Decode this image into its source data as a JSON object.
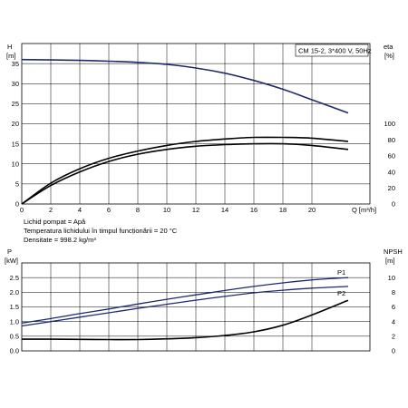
{
  "chart_data": [
    {
      "type": "line",
      "title": "CM 15-2, 3*400 V, 50Hz",
      "ylabel": "H",
      "yunit": "[m]",
      "ylabel_right": "eta",
      "yunit_right": "[%]",
      "xlabel": "Q [m³/h]",
      "xlim": [
        0,
        24
      ],
      "ylim": [
        0,
        40
      ],
      "ylim_right": [
        0,
        200
      ],
      "x_ticks": [
        0,
        2,
        4,
        6,
        8,
        10,
        12,
        14,
        16,
        18,
        20
      ],
      "y_ticks": [
        0,
        5,
        10,
        15,
        20,
        25,
        30,
        35
      ],
      "y_ticks_right": [
        0,
        20,
        40,
        60,
        80,
        100
      ],
      "grid": true,
      "series": [
        {
          "axis": "left",
          "color": "#1c2b6e",
          "x": [
            0,
            2,
            4,
            6,
            8,
            10,
            12,
            14,
            16,
            18,
            20,
            22.5
          ],
          "y": [
            36.0,
            35.9,
            35.8,
            35.6,
            35.3,
            34.8,
            33.9,
            32.6,
            30.8,
            28.6,
            26.0,
            22.7
          ]
        },
        {
          "axis": "right",
          "color": "#000000",
          "x": [
            0,
            2,
            4,
            6,
            8,
            10,
            12,
            14,
            16,
            18,
            20,
            22.5
          ],
          "y": [
            0,
            23,
            40,
            53,
            62,
            68,
            72,
            74,
            75,
            75,
            73,
            68
          ]
        },
        {
          "axis": "right",
          "color": "#000000",
          "x": [
            0,
            2,
            4,
            6,
            8,
            10,
            12,
            14,
            16,
            18,
            20,
            22.5
          ],
          "y": [
            0,
            26,
            44,
            57,
            66,
            73,
            78,
            81,
            83,
            83,
            82,
            78
          ]
        }
      ]
    },
    {
      "type": "line",
      "ylabel": "P",
      "yunit": "[kW]",
      "ylabel_right": "NPSH",
      "yunit_right": "[m]",
      "xlim": [
        0,
        24
      ],
      "ylim": [
        0,
        3
      ],
      "ylim_right": [
        0,
        12
      ],
      "y_ticks": [
        0,
        0.5,
        1.0,
        1.5,
        2.0,
        2.5
      ],
      "y_tick_labels": [
        "0.0",
        "0.5",
        "1.0",
        "1.5",
        "2.0",
        "2.5"
      ],
      "y_ticks_right": [
        0,
        2,
        4,
        6,
        8,
        10
      ],
      "grid": true,
      "series": [
        {
          "name": "P1",
          "axis": "left",
          "color": "#1c2b6e",
          "x": [
            0,
            2,
            4,
            6,
            8,
            10,
            12,
            14,
            16,
            18,
            20,
            22.5
          ],
          "y": [
            0.95,
            1.1,
            1.27,
            1.43,
            1.6,
            1.76,
            1.91,
            2.06,
            2.2,
            2.32,
            2.42,
            2.5
          ]
        },
        {
          "name": "P2",
          "axis": "left",
          "color": "#1c2b6e",
          "x": [
            0,
            2,
            4,
            6,
            8,
            10,
            12,
            14,
            16,
            18,
            20,
            22.5
          ],
          "y": [
            0.85,
            1.0,
            1.15,
            1.3,
            1.45,
            1.59,
            1.73,
            1.86,
            1.98,
            2.07,
            2.14,
            2.2
          ]
        },
        {
          "axis": "right",
          "color": "#000000",
          "x": [
            0,
            2,
            4,
            6,
            8,
            10,
            12,
            14,
            16,
            18,
            20,
            22.5
          ],
          "y": [
            1.6,
            1.6,
            1.57,
            1.55,
            1.55,
            1.65,
            1.8,
            2.1,
            2.6,
            3.5,
            4.9,
            6.9
          ]
        }
      ]
    }
  ],
  "fluid_info": [
    "Lichid pompat = Apă",
    "Temperatura lichidului în timpul funcționării = 20 °C",
    "Densitate = 998.2 kg/m³"
  ]
}
